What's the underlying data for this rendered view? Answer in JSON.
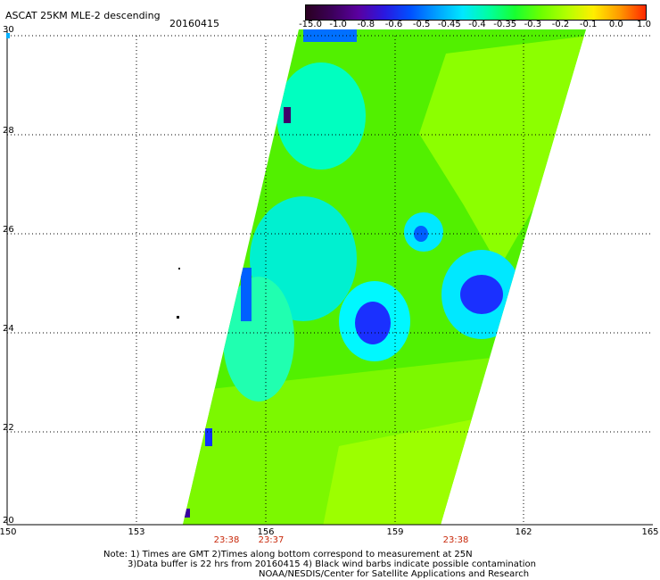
{
  "title": "ASCAT 25KM MLE-2 descending",
  "date": "20160415",
  "colorbar": {
    "labels": [
      "-15.0",
      "-1.0",
      "-0.8",
      "-0.6",
      "-0.5",
      "-0.45",
      "-0.4",
      "-0.35",
      "-0.3",
      "-0.2",
      "-0.1",
      "0.0",
      "1.0"
    ],
    "colors": [
      "#2a0020",
      "#3c005a",
      "#5a00a0",
      "#2a18e0",
      "#0050ff",
      "#00a0ff",
      "#00e8ff",
      "#00ffa0",
      "#18ff30",
      "#6cff00",
      "#b4ff00",
      "#ffee00",
      "#ff9a00",
      "#ff2800"
    ]
  },
  "axes": {
    "lon_labels": [
      "150",
      "153",
      "156",
      "159",
      "162",
      "165"
    ],
    "lat_labels": [
      "30",
      "28",
      "26",
      "24",
      "22",
      "20"
    ]
  },
  "times": [
    "23:38",
    "23:37",
    "23:38"
  ],
  "notes": [
    "Note: 1) Times are GMT 2)Times along bottom correspond to measurement at 25N",
    "3)Data buffer is 22 hrs from 20160415 4) Black wind barbs indicate possible contamination",
    "NOAA/NESDIS/Center for Satellite Applications and Research"
  ]
}
